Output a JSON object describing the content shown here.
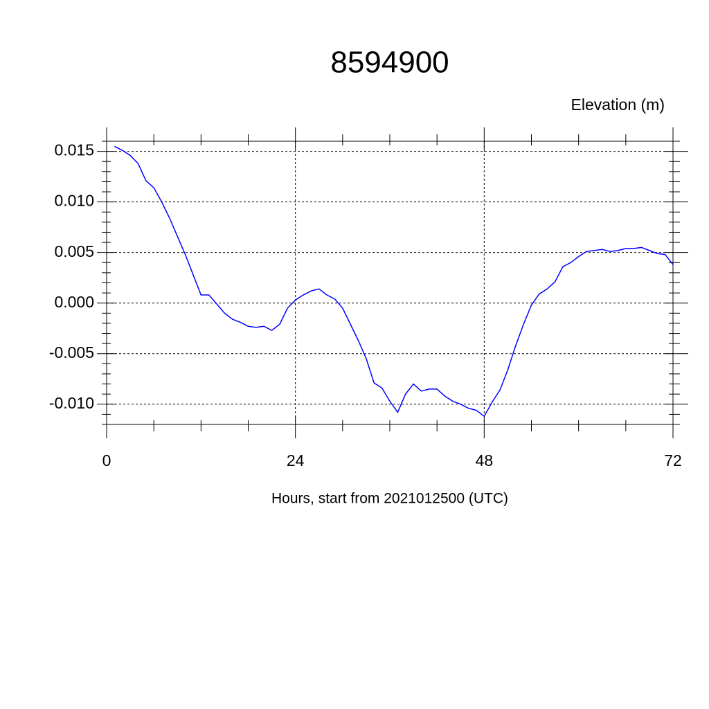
{
  "chart_data": {
    "type": "line",
    "title": "8594900",
    "subtitle": "Elevation (m)",
    "x_label": "Hours, start from 2021012500 (UTC)",
    "color": "#0000ff",
    "grid": true,
    "x": [
      1,
      2,
      3,
      4,
      5,
      6,
      7,
      8,
      9,
      10,
      11,
      12,
      13,
      14,
      15,
      16,
      17,
      18,
      19,
      20,
      21,
      22,
      23,
      24,
      25,
      26,
      27,
      28,
      29,
      30,
      31,
      32,
      33,
      34,
      35,
      36,
      37,
      38,
      39,
      40,
      41,
      42,
      43,
      44,
      45,
      46,
      47,
      48,
      49,
      50,
      51,
      52,
      53,
      54,
      55,
      56,
      57,
      58,
      59,
      60,
      61,
      62,
      63,
      64,
      65,
      66,
      67,
      68,
      69,
      70,
      71,
      72
    ],
    "values": [
      0.0155,
      0.0151,
      0.0146,
      0.0138,
      0.0121,
      0.0114,
      0.01,
      0.0084,
      0.0066,
      0.0048,
      0.0028,
      0.0008,
      0.0008,
      -0.0001,
      -0.001,
      -0.0016,
      -0.0019,
      -0.0023,
      -0.0024,
      -0.0023,
      -0.0027,
      -0.0021,
      -0.0005,
      0.0003,
      0.0008,
      0.0012,
      0.0014,
      0.0008,
      0.0004,
      -0.0005,
      -0.0021,
      -0.0037,
      -0.0055,
      -0.0079,
      -0.0084,
      -0.0097,
      -0.0108,
      -0.009,
      -0.008,
      -0.0087,
      -0.0085,
      -0.0085,
      -0.0092,
      -0.0097,
      -0.01,
      -0.0104,
      -0.0106,
      -0.0112,
      -0.0098,
      -0.0086,
      -0.0066,
      -0.0042,
      -0.0021,
      -0.0002,
      0.0009,
      0.0014,
      0.0021,
      0.0036,
      0.004,
      0.0046,
      0.0051,
      0.0052,
      0.0053,
      0.0051,
      0.0052,
      0.0054,
      0.0054,
      0.0055,
      0.0052,
      0.0049,
      0.0048,
      0.0038
    ],
    "xlim": [
      0,
      72
    ],
    "xticks": [
      0,
      24,
      48,
      72
    ],
    "ylim": [
      -0.012,
      0.016
    ],
    "yticks": [
      {
        "value": -0.01,
        "label": "-0.010"
      },
      -0.005,
      {
        "value": 0,
        "label": "0.000"
      },
      0.005,
      {
        "value": 0.01,
        "label": "0.010"
      },
      0.015
    ]
  }
}
